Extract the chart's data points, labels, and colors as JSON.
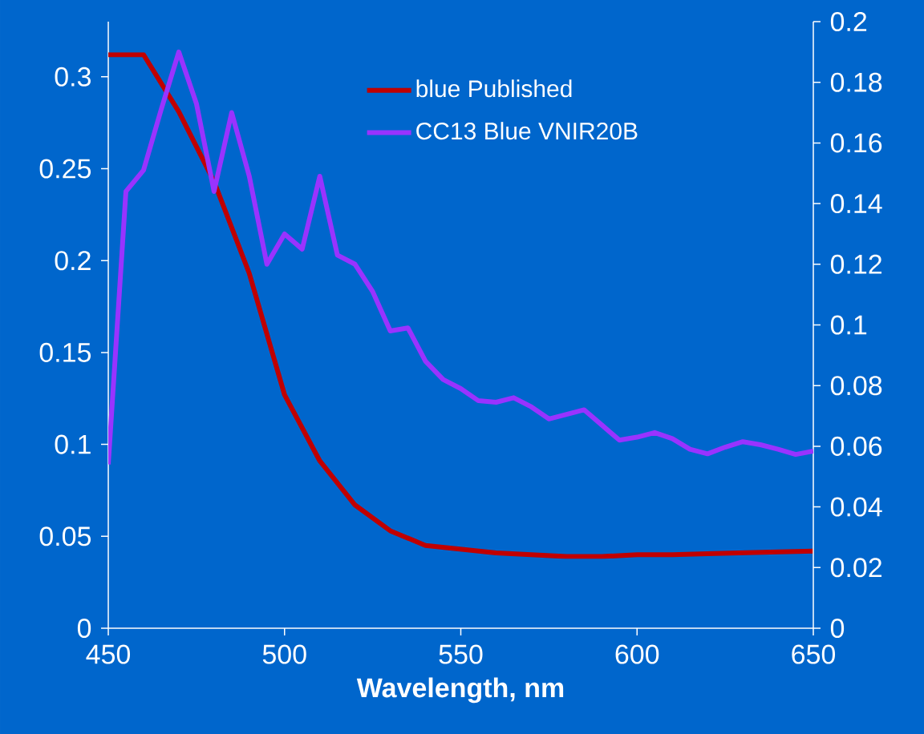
{
  "chart_data": {
    "type": "line",
    "xlabel": "Wavelength, nm",
    "legend": "top right",
    "grid": false,
    "marker": "none",
    "line_style": "solid",
    "xlim": [
      450,
      650
    ],
    "xticks": [
      450,
      500,
      550,
      600,
      650
    ],
    "ylim": [
      0,
      0.33
    ],
    "yticks": [
      0,
      0.05,
      0.1,
      0.15,
      0.2,
      0.25,
      0.3
    ],
    "y2lim": [
      0,
      0.2
    ],
    "y2ticks": [
      0,
      0.02,
      0.04,
      0.06,
      0.08,
      0.1,
      0.12,
      0.14,
      0.16,
      0.18,
      0.2
    ],
    "series": [
      {
        "name": "blue Published",
        "color": "#c00000",
        "axis": "y",
        "x": [
          450,
          460,
          470,
          480,
          490,
          500,
          510,
          520,
          530,
          540,
          550,
          560,
          570,
          580,
          590,
          600,
          610,
          620,
          630,
          640,
          650
        ],
        "values": [
          0.312,
          0.312,
          0.281,
          0.243,
          0.193,
          0.127,
          0.091,
          0.067,
          0.053,
          0.045,
          0.043,
          0.041,
          0.04,
          0.039,
          0.039,
          0.04,
          0.04,
          0.0405,
          0.041,
          0.0415,
          0.042
        ]
      },
      {
        "name": "CC13 Blue VNIR20B",
        "color": "#9933ff",
        "axis": "y2",
        "x": [
          450,
          455,
          460,
          465,
          470,
          475,
          480,
          485,
          490,
          495,
          500,
          505,
          510,
          515,
          520,
          525,
          530,
          535,
          540,
          545,
          550,
          555,
          560,
          565,
          570,
          575,
          580,
          585,
          590,
          595,
          600,
          605,
          610,
          615,
          620,
          625,
          630,
          635,
          640,
          645,
          650
        ],
        "values": [
          0.054,
          0.144,
          0.151,
          0.171,
          0.19,
          0.173,
          0.144,
          0.17,
          0.149,
          0.12,
          0.13,
          0.125,
          0.149,
          0.123,
          0.12,
          0.111,
          0.098,
          0.099,
          0.088,
          0.082,
          0.079,
          0.075,
          0.0745,
          0.076,
          0.073,
          0.069,
          0.0705,
          0.072,
          0.067,
          0.062,
          0.063,
          0.0645,
          0.0625,
          0.059,
          0.0575,
          0.0597,
          0.0615,
          0.0605,
          0.059,
          0.0573,
          0.0584
        ]
      }
    ]
  }
}
